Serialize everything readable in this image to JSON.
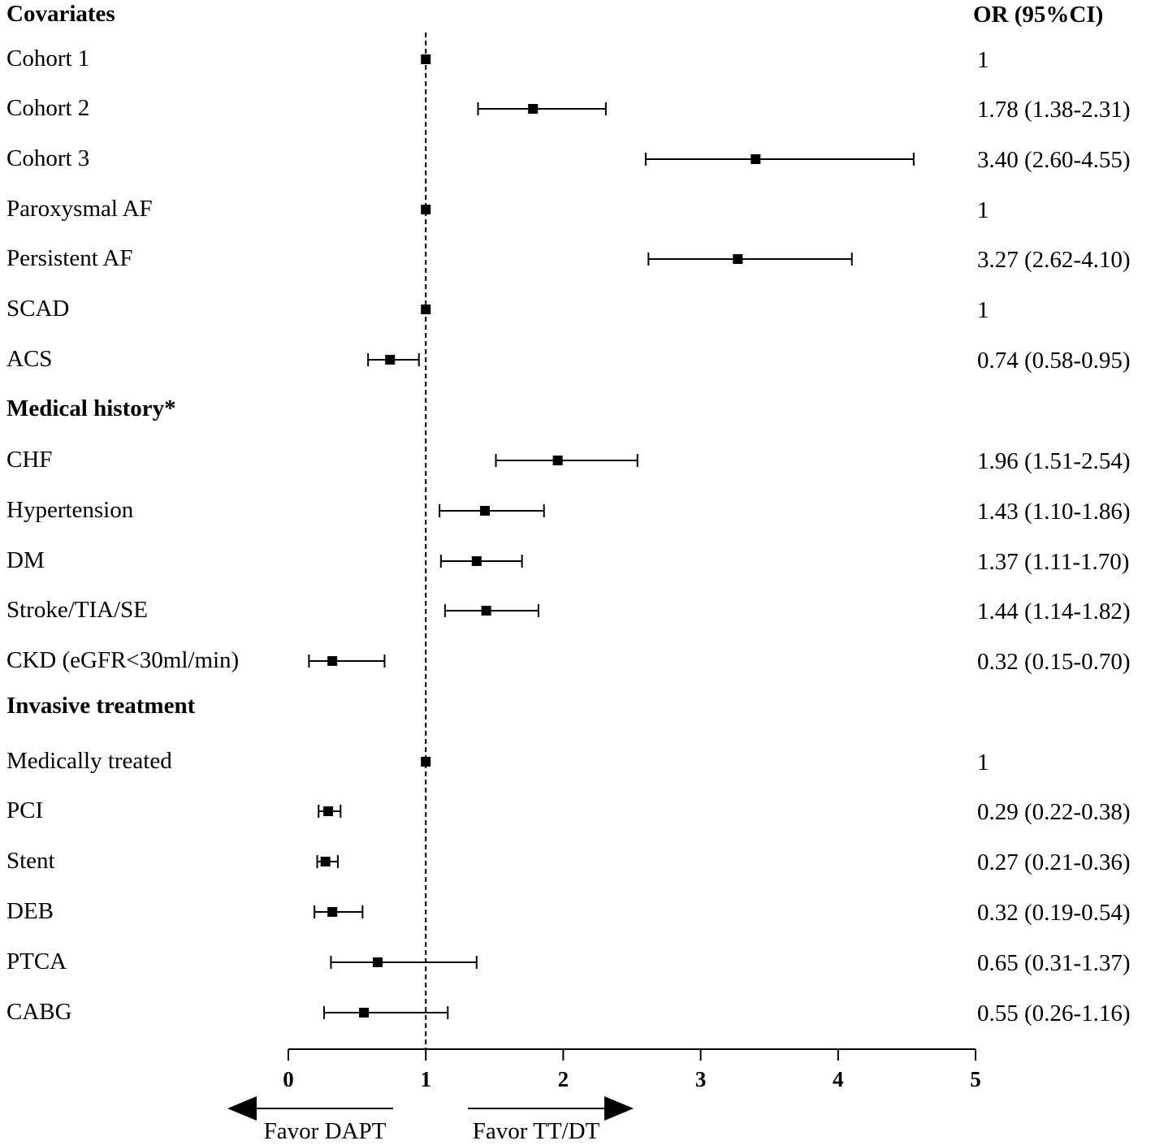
{
  "chart_data": {
    "type": "forest",
    "or_header": "OR (95%CI)",
    "xlim": [
      0,
      5
    ],
    "xticks": [
      "0",
      "1",
      "2",
      "3",
      "4",
      "5"
    ],
    "reference_line": 1,
    "arrows": {
      "left_label": "Favor DAPT",
      "right_label": "Favor TT/DT"
    },
    "rows": [
      {
        "kind": "header",
        "label": "Covariates"
      },
      {
        "kind": "item",
        "label": "Cohort 1",
        "or": 1,
        "lo": null,
        "hi": null,
        "text": "1"
      },
      {
        "kind": "item",
        "label": "Cohort 2",
        "or": 1.78,
        "lo": 1.38,
        "hi": 2.31,
        "text": "1.78 (1.38-2.31)"
      },
      {
        "kind": "item",
        "label": "Cohort 3",
        "or": 3.4,
        "lo": 2.6,
        "hi": 4.55,
        "text": "3.40 (2.60-4.55)"
      },
      {
        "kind": "item",
        "label": "Paroxysmal AF",
        "or": 1,
        "lo": null,
        "hi": null,
        "text": "1"
      },
      {
        "kind": "item",
        "label": "Persistent AF",
        "or": 3.27,
        "lo": 2.62,
        "hi": 4.1,
        "text": "3.27 (2.62-4.10)"
      },
      {
        "kind": "item",
        "label": "SCAD",
        "or": 1,
        "lo": null,
        "hi": null,
        "text": "1"
      },
      {
        "kind": "item",
        "label": "ACS",
        "or": 0.74,
        "lo": 0.58,
        "hi": 0.95,
        "text": "0.74 (0.58-0.95)"
      },
      {
        "kind": "header",
        "label": "Medical history*"
      },
      {
        "kind": "item",
        "label": "CHF",
        "or": 1.96,
        "lo": 1.51,
        "hi": 2.54,
        "text": "1.96 (1.51-2.54)"
      },
      {
        "kind": "item",
        "label": "Hypertension",
        "or": 1.43,
        "lo": 1.1,
        "hi": 1.86,
        "text": "1.43 (1.10-1.86)"
      },
      {
        "kind": "item",
        "label": "DM",
        "or": 1.37,
        "lo": 1.11,
        "hi": 1.7,
        "text": "1.37 (1.11-1.70)"
      },
      {
        "kind": "item",
        "label": "Stroke/TIA/SE",
        "or": 1.44,
        "lo": 1.14,
        "hi": 1.82,
        "text": "1.44 (1.14-1.82)"
      },
      {
        "kind": "item",
        "label": "CKD (eGFR<30ml/min)",
        "or": 0.32,
        "lo": 0.15,
        "hi": 0.7,
        "text": "0.32 (0.15-0.70)"
      },
      {
        "kind": "header",
        "label": "Invasive treatment"
      },
      {
        "kind": "item",
        "label": "Medically treated",
        "or": 1,
        "lo": null,
        "hi": null,
        "text": "1"
      },
      {
        "kind": "item",
        "label": "PCI",
        "or": 0.29,
        "lo": 0.22,
        "hi": 0.38,
        "text": "0.29 (0.22-0.38)"
      },
      {
        "kind": "item",
        "label": "Stent",
        "or": 0.27,
        "lo": 0.21,
        "hi": 0.36,
        "text": "0.27 (0.21-0.36)"
      },
      {
        "kind": "item",
        "label": "DEB",
        "or": 0.32,
        "lo": 0.19,
        "hi": 0.54,
        "text": "0.32 (0.19-0.54)"
      },
      {
        "kind": "item",
        "label": "PTCA",
        "or": 0.65,
        "lo": 0.31,
        "hi": 1.37,
        "text": "0.65 (0.31-1.37)"
      },
      {
        "kind": "item",
        "label": "CABG",
        "or": 0.55,
        "lo": 0.26,
        "hi": 1.16,
        "text": "0.55 (0.26-1.16)"
      }
    ]
  }
}
